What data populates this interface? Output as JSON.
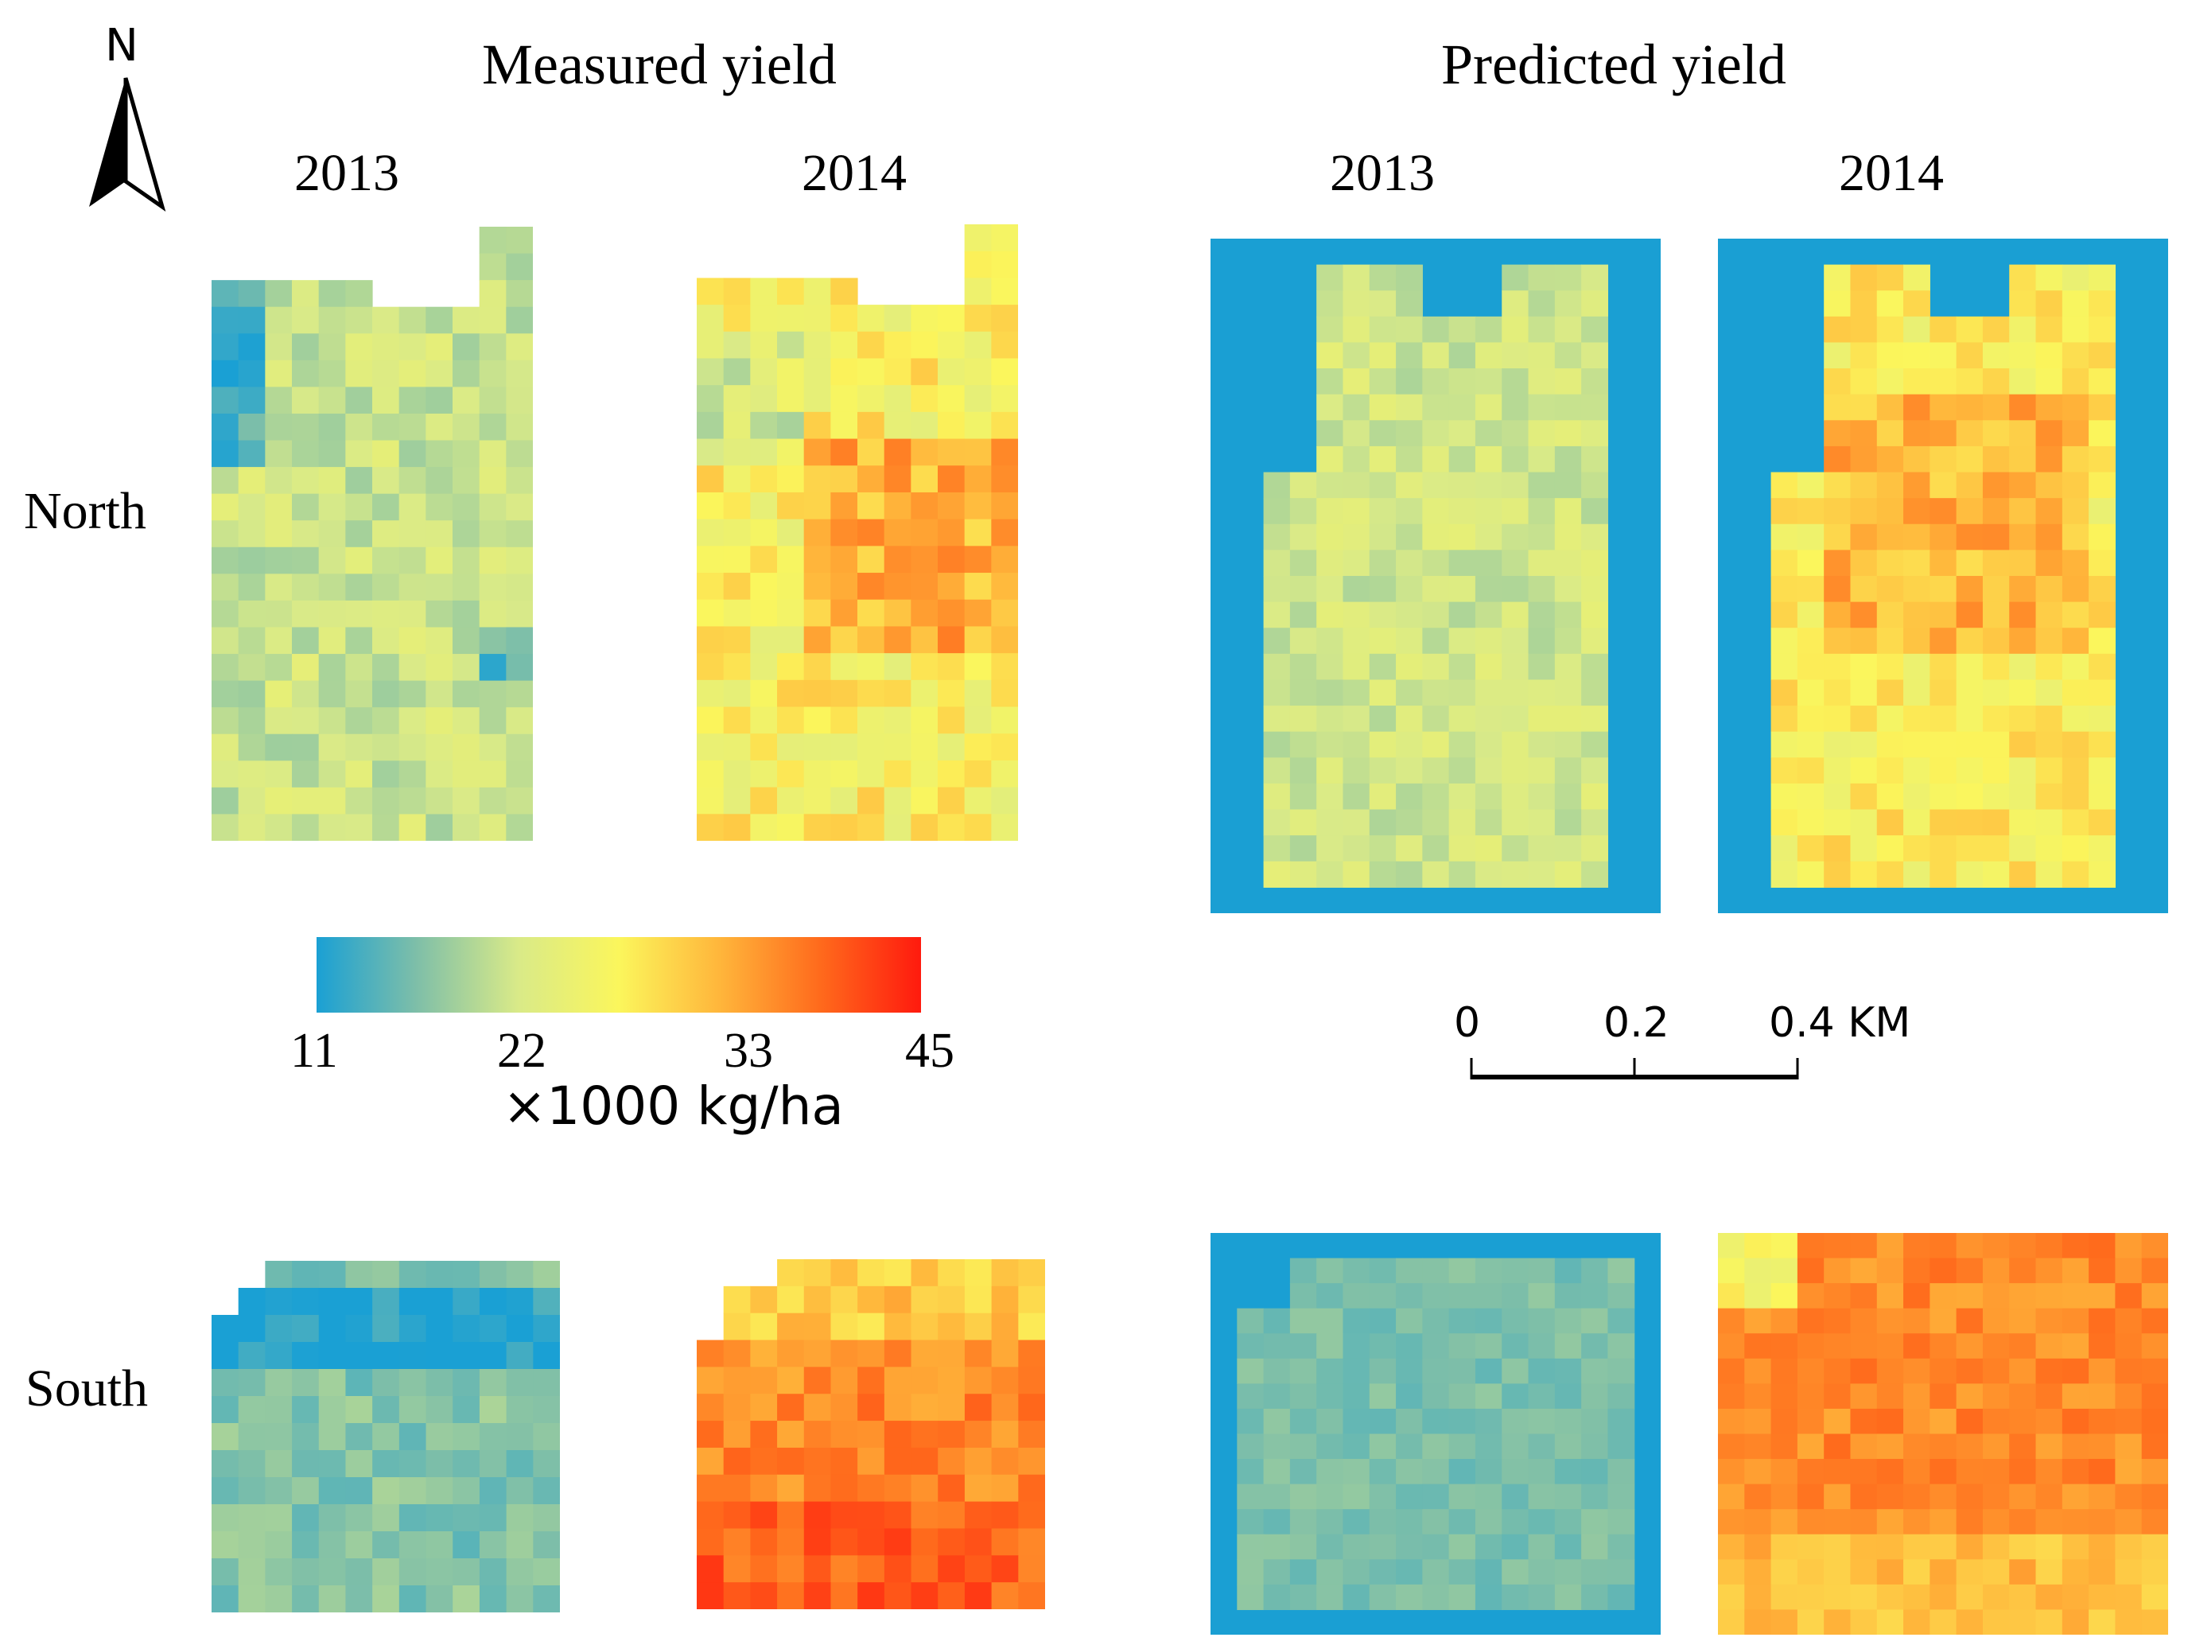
{
  "north_arrow": {
    "label": "N"
  },
  "titles": {
    "measured": "Measured yield",
    "predicted": "Predicted yield"
  },
  "years": {
    "measured_1": "2013",
    "measured_2": "2014",
    "predicted_1": "2013",
    "predicted_2": "2014"
  },
  "regions": {
    "north": "North",
    "south": "South"
  },
  "colorbar": {
    "ticks": [
      "11",
      "22",
      "33",
      "45"
    ],
    "unit": "×1000 kg/ha",
    "min": 11,
    "max": 45,
    "colors": [
      "#1aa0d4",
      "#7fbfa8",
      "#d9ea88",
      "#fbf65c",
      "#ffb63b",
      "#ff6a1c",
      "#ff1a0e"
    ]
  },
  "scalebar": {
    "labels": [
      "0",
      "0.2",
      "0.4 KM"
    ]
  },
  "colors": {
    "background_blue": "#1a9fd3"
  },
  "panels": {
    "north_measured_2013": {
      "mean": 21.5,
      "spread": 3
    },
    "north_measured_2014": {
      "mean": 28,
      "spread": 4
    },
    "north_predicted_2013": {
      "mean": 22,
      "spread": 2.5
    },
    "north_predicted_2014": {
      "mean": 28.5,
      "spread": 3.5
    },
    "south_measured_2013": {
      "mean": 17,
      "spread": 2.5
    },
    "south_measured_2014": {
      "mean": 37,
      "spread": 3
    },
    "south_predicted_2013": {
      "mean": 16.5,
      "spread": 1.5
    },
    "south_predicted_2014": {
      "mean": 37,
      "spread": 2.5
    }
  }
}
